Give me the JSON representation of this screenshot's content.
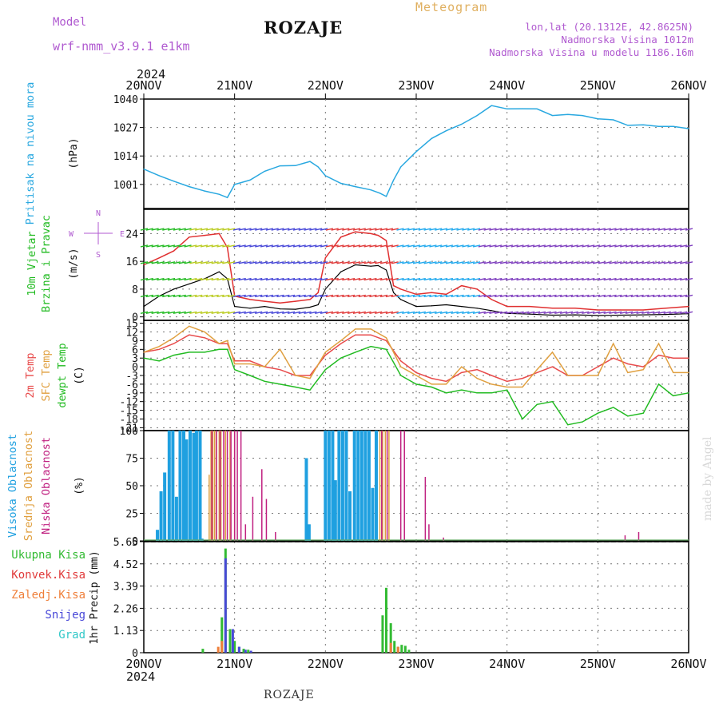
{
  "header": {
    "title": "ROZAJE",
    "meteogram_label": "Meteogram",
    "model_label": "Model",
    "model_name": "wrf-nmm_v3.9.1 e1km",
    "lonlat": "lon,lat (20.1312E, 42.8625N)",
    "altitude": "Nadmorska Visina 1012m",
    "model_altitude": "Nadmorska Visina u modelu 1186.16m",
    "year_top": "2024",
    "year_bottom": "2024"
  },
  "footer": {
    "station": "ROZAJE",
    "credit": "made by Angel"
  },
  "colors": {
    "pressure": "#29a8e0",
    "wind_speed": "#000000",
    "wind_gust": "#e03030",
    "temp_2m": "#e84b4b",
    "temp_sfc": "#e0a040",
    "dewpoint": "#22bb22",
    "cloud_high": "#1fa0e0",
    "cloud_mid": "#e0a040",
    "cloud_low": "#c02080",
    "precip_total": "#33bb33",
    "precip_conv": "#e03a3a",
    "precip_frz": "#ef7f3a",
    "precip_snow": "#4848d8",
    "precip_grad": "#30c8c8"
  },
  "chart_data": [
    {
      "type": "line",
      "panel": "pressure",
      "ylabel": [
        "Pritisak na nivou mora",
        "(hPa)"
      ],
      "x_ticks": [
        "20NOV",
        "21NOV",
        "22NOV",
        "23NOV",
        "24NOV",
        "25NOV",
        "26NOV"
      ],
      "ylim": [
        990,
        1040
      ],
      "yticks": [
        1001,
        1014,
        1027,
        1040
      ],
      "grid": true,
      "series": [
        {
          "x": [
            0,
            0.17,
            0.33,
            0.5,
            0.67,
            0.83,
            0.92,
            1.0,
            1.17,
            1.33,
            1.5,
            1.67,
            1.83,
            1.92,
            2.0,
            2.17,
            2.33,
            2.5,
            2.6,
            2.67,
            2.75,
            2.83,
            3.0,
            3.17,
            3.33,
            3.5,
            3.67,
            3.83,
            4.0,
            4.17,
            4.33,
            4.5,
            4.67,
            4.83,
            5.0,
            5.17,
            5.33,
            5.5,
            5.67,
            5.83,
            6.0
          ],
          "y": [
            1008,
            1005,
            1002.5,
            1000,
            998,
            996.5,
            995,
            1001,
            1003,
            1007,
            1009.5,
            1009.6,
            1011.5,
            1009,
            1005,
            1001.5,
            1000,
            998.5,
            997,
            995.5,
            1003,
            1009,
            1016,
            1022,
            1025.5,
            1028.5,
            1032.5,
            1037,
            1035.5,
            1035.6,
            1035.5,
            1032.5,
            1033,
            1032.5,
            1031,
            1030.5,
            1028,
            1028.2,
            1027.5,
            1027.5,
            1026.5
          ]
        }
      ]
    },
    {
      "type": "line",
      "panel": "wind",
      "ylabel": [
        "10m Vjetar",
        "Brzina i Pravac",
        "(m/s)"
      ],
      "ylim": [
        -1,
        31
      ],
      "yticks": [
        0,
        8,
        16,
        24
      ],
      "compass": [
        "N",
        "W",
        "E",
        "S"
      ],
      "grid": true,
      "series": [
        {
          "name": "speed",
          "x": [
            0,
            0.17,
            0.33,
            0.5,
            0.67,
            0.83,
            0.92,
            1.0,
            1.17,
            1.33,
            1.5,
            1.67,
            1.83,
            1.92,
            2.0,
            2.17,
            2.33,
            2.5,
            2.58,
            2.67,
            2.75,
            2.83,
            3.0,
            3.17,
            3.33,
            3.5,
            3.67,
            3.83,
            4.0,
            4.25,
            4.5,
            4.75,
            5.0,
            5.25,
            5.5,
            5.75,
            6.0
          ],
          "y": [
            3,
            6,
            8,
            9.5,
            11,
            13,
            11,
            3,
            2.5,
            3,
            2.3,
            2.2,
            2.8,
            3.5,
            8,
            13,
            15,
            14.6,
            14.8,
            13.5,
            7,
            5,
            3,
            3.2,
            3.5,
            3.0,
            2.5,
            1.8,
            1.0,
            0.8,
            0.5,
            0.6,
            0.4,
            0.5,
            0.6,
            0.7,
            0.9
          ]
        },
        {
          "name": "gust",
          "x": [
            0,
            0.17,
            0.33,
            0.5,
            0.67,
            0.83,
            0.92,
            1.0,
            1.17,
            1.33,
            1.5,
            1.67,
            1.83,
            1.92,
            2.0,
            2.17,
            2.33,
            2.5,
            2.58,
            2.67,
            2.75,
            2.83,
            3.0,
            3.17,
            3.33,
            3.5,
            3.67,
            3.83,
            4.0,
            4.25,
            4.5,
            4.75,
            5.0,
            5.25,
            5.5,
            5.75,
            6.0
          ],
          "y": [
            15,
            17,
            19,
            23,
            23.5,
            24,
            20,
            6,
            5,
            4.5,
            4,
            4.5,
            5,
            7,
            17,
            23,
            24.5,
            24,
            23.5,
            22,
            9,
            8,
            6.5,
            7,
            6.5,
            9,
            8,
            5,
            3,
            3,
            2.5,
            2.5,
            2,
            2,
            2,
            2.5,
            3
          ]
        }
      ]
    },
    {
      "type": "line",
      "panel": "temperature",
      "ylabel": [
        "2m Temp",
        "SFC Temp",
        "dewpt Temp",
        "(C)"
      ],
      "ylim": [
        -22,
        16
      ],
      "yticks": [
        15,
        12,
        9,
        6,
        3,
        0,
        -3,
        -6,
        -9,
        -12,
        -15,
        -18,
        -21
      ],
      "grid": true,
      "series": [
        {
          "name": "2m Temp",
          "x": [
            0,
            0.17,
            0.33,
            0.5,
            0.67,
            0.83,
            0.92,
            1.0,
            1.17,
            1.33,
            1.5,
            1.67,
            1.83,
            2.0,
            2.17,
            2.33,
            2.5,
            2.67,
            2.83,
            3.0,
            3.17,
            3.33,
            3.5,
            3.67,
            3.83,
            4.0,
            4.17,
            4.33,
            4.5,
            4.67,
            4.83,
            5.0,
            5.17,
            5.33,
            5.5,
            5.67,
            5.83,
            6.0
          ],
          "y": [
            5,
            6,
            8,
            11,
            10,
            8,
            8,
            2,
            2,
            0,
            -1,
            -3,
            -3,
            4,
            8,
            11,
            11,
            9,
            2,
            -2,
            -4,
            -5,
            -2,
            -1,
            -3,
            -5,
            -4,
            -2,
            0,
            -3,
            -3,
            0,
            3,
            1,
            0,
            4,
            3,
            3
          ]
        },
        {
          "name": "SFC Temp",
          "x": [
            0,
            0.17,
            0.33,
            0.5,
            0.67,
            0.83,
            0.92,
            1.0,
            1.17,
            1.33,
            1.5,
            1.67,
            1.83,
            2.0,
            2.17,
            2.33,
            2.5,
            2.67,
            2.83,
            3.0,
            3.17,
            3.33,
            3.5,
            3.67,
            3.83,
            4.0,
            4.17,
            4.33,
            4.5,
            4.67,
            4.83,
            5.0,
            5.17,
            5.33,
            5.5,
            5.67,
            5.83,
            6.0
          ],
          "y": [
            5,
            7,
            10,
            14,
            12,
            8,
            9,
            1,
            1,
            0,
            6,
            -3,
            -4,
            5,
            9,
            13,
            13,
            10,
            0,
            -3,
            -6,
            -6,
            0,
            -4,
            -6,
            -7,
            -7,
            -1,
            5,
            -3,
            -3,
            -3,
            8,
            -2,
            -1,
            8,
            -2,
            -2
          ]
        },
        {
          "name": "dewpt Temp",
          "x": [
            0,
            0.17,
            0.33,
            0.5,
            0.67,
            0.83,
            0.92,
            1.0,
            1.17,
            1.33,
            1.5,
            1.67,
            1.83,
            2.0,
            2.17,
            2.33,
            2.5,
            2.67,
            2.83,
            3.0,
            3.17,
            3.33,
            3.5,
            3.67,
            3.83,
            4.0,
            4.17,
            4.33,
            4.5,
            4.67,
            4.83,
            5.0,
            5.17,
            5.33,
            5.5,
            5.67,
            5.83,
            6.0
          ],
          "y": [
            3,
            2,
            4,
            5,
            5,
            6,
            6,
            -1,
            -3,
            -5,
            -6,
            -7,
            -8,
            -1,
            3,
            5,
            7,
            6,
            -3,
            -6,
            -7,
            -9,
            -8,
            -9,
            -9,
            -8,
            -18,
            -13,
            -12,
            -20,
            -19,
            -16,
            -14,
            -17,
            -16,
            -6,
            -10,
            -9
          ]
        }
      ]
    },
    {
      "type": "bar",
      "panel": "clouds",
      "ylabel": [
        "Visoka Oblacnost",
        "Srednja Oblacnost",
        "Niska Oblacnost",
        "(%)"
      ],
      "ylim": [
        0,
        100
      ],
      "yticks": [
        0,
        25,
        50,
        75,
        100
      ],
      "grid": true,
      "series": [
        {
          "name": "Visoka Oblacnost",
          "x": [
            0.15,
            0.19,
            0.23,
            0.28,
            0.32,
            0.36,
            0.4,
            0.44,
            0.47,
            0.51,
            0.55,
            0.58,
            0.62,
            0.64,
            1.79,
            1.82,
            2.0,
            2.04,
            2.08,
            2.11,
            2.15,
            2.19,
            2.23,
            2.27,
            2.32,
            2.36,
            2.4,
            2.44,
            2.48,
            2.52,
            2.56
          ],
          "y": [
            10,
            45,
            62,
            100,
            100,
            40,
            100,
            100,
            92,
            100,
            98,
            100,
            100,
            2,
            75,
            15,
            100,
            100,
            100,
            55,
            100,
            100,
            100,
            45,
            100,
            100,
            100,
            100,
            100,
            48,
            100
          ]
        },
        {
          "name": "Srednja Oblacnost",
          "x": [
            0.72,
            0.74,
            0.76,
            0.78,
            0.8,
            0.83,
            0.85,
            0.9,
            0.95,
            1.0,
            2.6,
            2.63,
            2.66,
            2.7
          ],
          "y": [
            60,
            100,
            100,
            100,
            100,
            100,
            100,
            100,
            100,
            100,
            100,
            100,
            100,
            100
          ]
        },
        {
          "name": "Niska Oblacnost",
          "x": [
            0.75,
            0.8,
            0.84,
            0.88,
            0.92,
            0.96,
            1.0,
            1.03,
            1.07,
            1.12,
            1.2,
            1.3,
            1.35,
            1.45,
            2.62,
            2.68,
            2.83,
            2.87,
            3.1,
            3.14,
            3.3,
            5.3,
            5.45
          ],
          "y": [
            100,
            100,
            100,
            100,
            100,
            100,
            100,
            100,
            100,
            15,
            40,
            65,
            38,
            8,
            100,
            100,
            100,
            100,
            58,
            15,
            3,
            5,
            8
          ]
        }
      ]
    },
    {
      "type": "bar",
      "panel": "precip",
      "ylabel": [
        "1hr Precip (mm)"
      ],
      "legend": [
        "Ukupna Kisa",
        "Konvek.Kisa",
        "Zaledj.Kisa",
        "Snijeg",
        "Grad"
      ],
      "ylim": [
        0,
        5.65
      ],
      "yticks": [
        "0",
        "1.13",
        "2.26",
        "3.39",
        "4.52",
        "5.65"
      ],
      "grid": true,
      "series": [
        {
          "name": "Ukupna Kisa",
          "x": [
            0.65,
            0.86,
            0.9,
            0.95,
            1.0,
            1.05,
            1.1,
            1.15,
            2.63,
            2.67,
            2.72,
            2.76,
            2.8,
            2.84,
            2.88,
            2.92
          ],
          "y": [
            0.2,
            1.8,
            5.3,
            1.2,
            0.6,
            0.3,
            0.2,
            0.15,
            1.9,
            3.3,
            1.5,
            0.6,
            0.3,
            0.4,
            0.35,
            0.15
          ]
        },
        {
          "name": "Konvek.Kisa",
          "x": [],
          "y": []
        },
        {
          "name": "Zaledj.Kisa",
          "x": [
            0.82,
            0.86,
            2.72,
            2.8
          ],
          "y": [
            0.3,
            0.6,
            0.5,
            0.3
          ]
        },
        {
          "name": "Snijeg",
          "x": [
            0.9,
            0.98,
            1.05,
            1.12,
            1.18
          ],
          "y": [
            4.8,
            1.2,
            0.3,
            0.15,
            0.1
          ]
        },
        {
          "name": "Grad",
          "x": [],
          "y": []
        }
      ]
    }
  ]
}
